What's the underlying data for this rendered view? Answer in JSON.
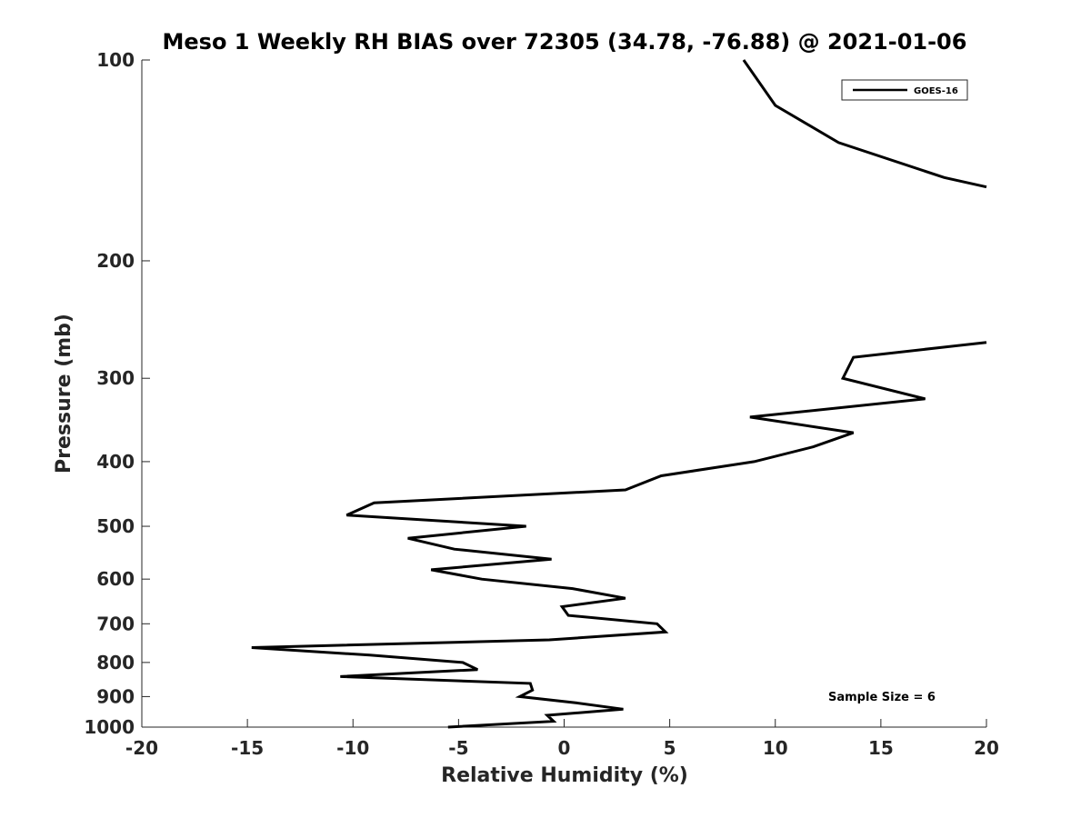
{
  "chart_data": {
    "type": "line",
    "title": "Meso 1 Weekly RH BIAS over 72305 (34.78, -76.88) @ 2021-01-06",
    "xlabel": "Relative Humidity (%)",
    "ylabel": "Pressure (mb)",
    "xlim": [
      -20,
      20
    ],
    "ylim": [
      100,
      1000
    ],
    "yscale": "log",
    "yreversed": true,
    "grid": false,
    "legend_position": "top-right",
    "xticks": [
      -20,
      -15,
      -10,
      -5,
      0,
      5,
      10,
      15,
      20
    ],
    "xtick_labels": [
      "-20",
      "-15",
      "-10",
      "-5",
      "0",
      "5",
      "10",
      "15",
      "20"
    ],
    "yticks": [
      100,
      200,
      300,
      400,
      500,
      600,
      700,
      800,
      900,
      1000
    ],
    "ytick_labels": [
      "100",
      "200",
      "300",
      "400",
      "500",
      "600",
      "700",
      "800",
      "900",
      "1000"
    ],
    "annotation": "Sample Size = 6",
    "series": [
      {
        "name": "GOES-16",
        "color": "#000000",
        "segments": [
          [
            {
              "x": 8.5,
              "y": 100
            },
            {
              "x": 10.0,
              "y": 117
            },
            {
              "x": 13.0,
              "y": 133
            },
            {
              "x": 18.0,
              "y": 150
            },
            {
              "x": 20.0,
              "y": 155
            }
          ],
          [
            {
              "x": 20.0,
              "y": 265
            },
            {
              "x": 13.7,
              "y": 279
            },
            {
              "x": 13.2,
              "y": 300
            },
            {
              "x": 17.1,
              "y": 322
            },
            {
              "x": 8.8,
              "y": 343
            },
            {
              "x": 13.7,
              "y": 362
            },
            {
              "x": 11.8,
              "y": 380
            },
            {
              "x": 9.0,
              "y": 400
            },
            {
              "x": 4.6,
              "y": 420
            },
            {
              "x": 2.9,
              "y": 441
            },
            {
              "x": -9.0,
              "y": 461
            },
            {
              "x": -10.3,
              "y": 481
            },
            {
              "x": -1.8,
              "y": 500
            },
            {
              "x": -7.4,
              "y": 521
            },
            {
              "x": -5.2,
              "y": 541
            },
            {
              "x": -0.6,
              "y": 560
            },
            {
              "x": -6.3,
              "y": 581
            },
            {
              "x": -3.9,
              "y": 600
            },
            {
              "x": 0.4,
              "y": 620
            },
            {
              "x": 2.9,
              "y": 641
            },
            {
              "x": -0.1,
              "y": 660
            },
            {
              "x": 0.2,
              "y": 680
            },
            {
              "x": 4.4,
              "y": 700
            },
            {
              "x": 4.8,
              "y": 720
            },
            {
              "x": -0.7,
              "y": 740
            },
            {
              "x": -14.8,
              "y": 760
            },
            {
              "x": -9.2,
              "y": 780
            },
            {
              "x": -4.8,
              "y": 800
            },
            {
              "x": -4.1,
              "y": 820
            },
            {
              "x": -10.6,
              "y": 840
            },
            {
              "x": -1.6,
              "y": 860
            },
            {
              "x": -1.5,
              "y": 880
            },
            {
              "x": -2.1,
              "y": 900
            },
            {
              "x": 0.6,
              "y": 920
            },
            {
              "x": 2.8,
              "y": 940
            },
            {
              "x": -0.8,
              "y": 960
            },
            {
              "x": -0.5,
              "y": 980
            },
            {
              "x": -5.5,
              "y": 1000
            }
          ]
        ]
      }
    ]
  }
}
